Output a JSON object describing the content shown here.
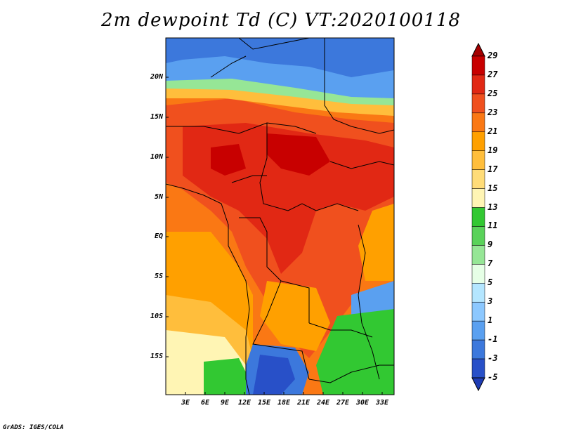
{
  "title": "2m dewpoint Td (C) VT:2020100118",
  "footer": "GrADS: IGES/COLA",
  "axes": {
    "lat_labels": [
      "20N",
      "15N",
      "10N",
      "5N",
      "EQ",
      "5S",
      "10S",
      "15S"
    ],
    "lon_labels": [
      "3E",
      "6E",
      "9E",
      "12E",
      "15E",
      "18E",
      "21E",
      "24E",
      "27E",
      "30E",
      "33E"
    ]
  },
  "colorbar": {
    "labels": [
      "29",
      "27",
      "25",
      "23",
      "21",
      "19",
      "17",
      "15",
      "13",
      "11",
      "9",
      "7",
      "5",
      "3",
      "1",
      "-1",
      "-3",
      "-5"
    ],
    "colors": [
      "#a50000",
      "#c80000",
      "#e12814",
      "#f0501e",
      "#fa7814",
      "#ffa000",
      "#ffbe3c",
      "#ffdc78",
      "#fff5b4",
      "#32c832",
      "#5ad25a",
      "#96e696",
      "#e6ffe6",
      "#b4e6ff",
      "#8cc8ff",
      "#5aa0f0",
      "#3c78dc",
      "#2850c8",
      "#1e3cb4"
    ]
  },
  "map": {
    "region_colors": {
      "sahara": "#3c78dc",
      "sahel": "#8cc8ff",
      "west_africa": "#f0501e",
      "central": "#e12814",
      "atlantic_north": "#fa7814",
      "atlantic_south": "#ffa000",
      "atlantic_far": "#ffbe3c",
      "namibia_coast": "#fff5b4",
      "kalahari": "#3c78dc",
      "green_south": "#32c832",
      "east_lakes": "#5aa0f0"
    }
  }
}
